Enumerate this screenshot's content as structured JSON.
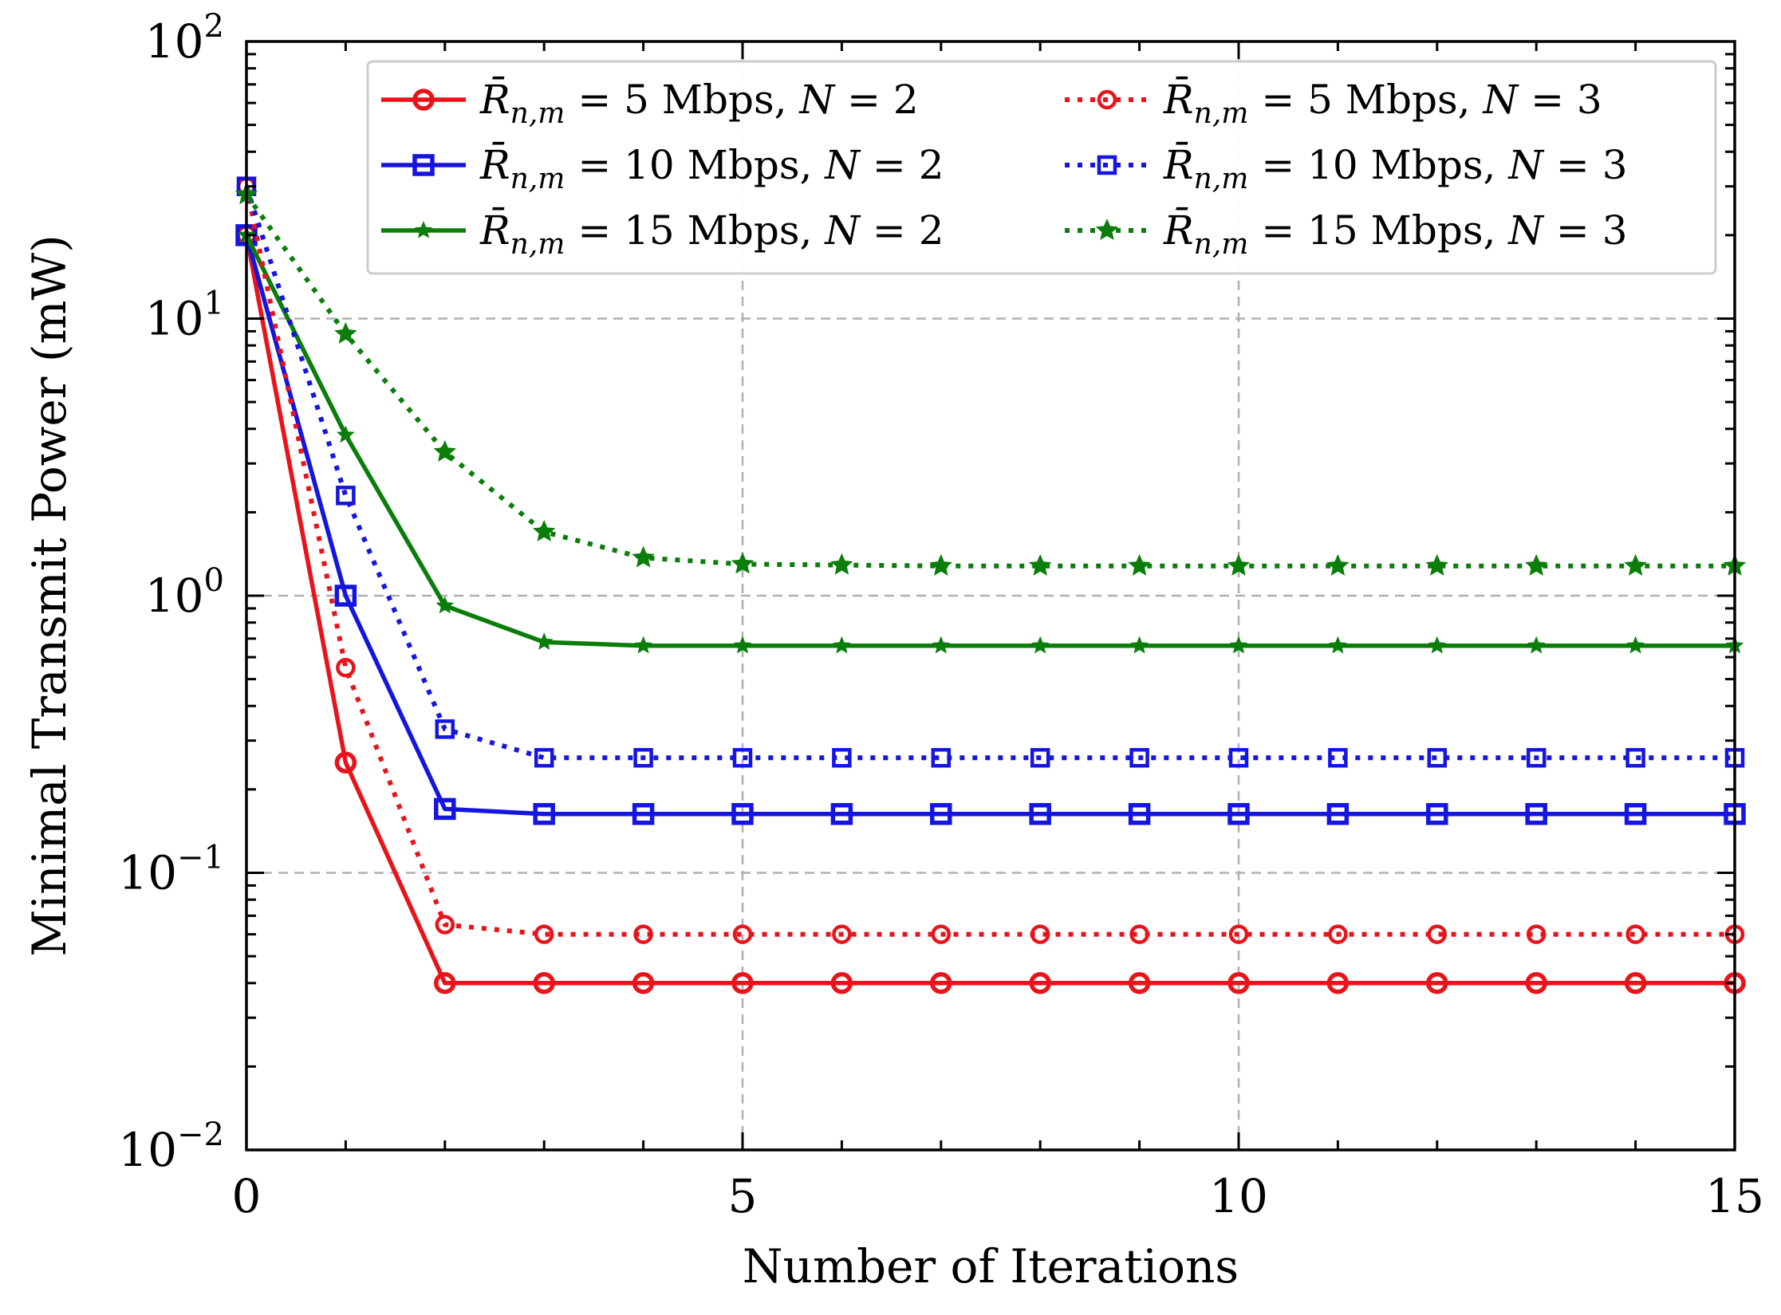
{
  "chart_data": {
    "type": "line",
    "title": "",
    "xlabel": "Number of Iterations",
    "ylabel": "Minimal Transmit Power (mW)",
    "xlim": [
      0,
      15
    ],
    "ylim": [
      0.01,
      100
    ],
    "yscale": "log",
    "grid": true,
    "legend_position": "top-right",
    "x_ticks": [
      {
        "value": 0,
        "label": "0"
      },
      {
        "value": 5,
        "label": "5"
      },
      {
        "value": 10,
        "label": "10"
      },
      {
        "value": 15,
        "label": "15"
      }
    ],
    "y_ticks": [
      {
        "value": 0.01,
        "base": "10",
        "exp": "−2"
      },
      {
        "value": 0.1,
        "base": "10",
        "exp": "−1"
      },
      {
        "value": 1,
        "base": "10",
        "exp": "0"
      },
      {
        "value": 10,
        "base": "10",
        "exp": "1"
      },
      {
        "value": 100,
        "base": "10",
        "exp": "2"
      }
    ],
    "x": [
      0,
      1,
      2,
      3,
      4,
      5,
      6,
      7,
      8,
      9,
      10,
      11,
      12,
      13,
      14,
      15
    ],
    "series": [
      {
        "name": "R̄n,m = 5 Mbps,  N = 2",
        "rate": "5",
        "N": "2",
        "color": "#e8141b",
        "style": "solid",
        "marker": "circle",
        "values": [
          20,
          0.25,
          0.04,
          0.04,
          0.04,
          0.04,
          0.04,
          0.04,
          0.04,
          0.04,
          0.04,
          0.04,
          0.04,
          0.04,
          0.04,
          0.04
        ]
      },
      {
        "name": "R̄n,m = 10 Mbps,  N = 2",
        "rate": "10",
        "N": "2",
        "color": "#1515e0",
        "style": "solid",
        "marker": "square",
        "values": [
          20,
          1.0,
          0.17,
          0.163,
          0.163,
          0.163,
          0.163,
          0.163,
          0.163,
          0.163,
          0.163,
          0.163,
          0.163,
          0.163,
          0.163,
          0.163
        ]
      },
      {
        "name": "R̄n,m = 15 Mbps,  N = 2",
        "rate": "15",
        "N": "2",
        "color": "#0a7d0a",
        "style": "solid",
        "marker": "star",
        "values": [
          20,
          3.8,
          0.92,
          0.68,
          0.66,
          0.66,
          0.66,
          0.66,
          0.66,
          0.66,
          0.66,
          0.66,
          0.66,
          0.66,
          0.66,
          0.66
        ]
      },
      {
        "name": "R̄n,m = 5 Mbps,  N = 3",
        "rate": "5",
        "N": "3",
        "color": "#e8141b",
        "style": "dotted",
        "marker": "circle",
        "values": [
          30,
          0.55,
          0.065,
          0.06,
          0.06,
          0.06,
          0.06,
          0.06,
          0.06,
          0.06,
          0.06,
          0.06,
          0.06,
          0.06,
          0.06,
          0.06
        ]
      },
      {
        "name": "R̄n,m = 10 Mbps,  N = 3",
        "rate": "10",
        "N": "3",
        "color": "#1515e0",
        "style": "dotted",
        "marker": "square",
        "values": [
          30,
          2.3,
          0.33,
          0.26,
          0.26,
          0.26,
          0.26,
          0.26,
          0.26,
          0.26,
          0.26,
          0.26,
          0.26,
          0.26,
          0.26,
          0.26
        ]
      },
      {
        "name": "R̄n,m = 15 Mbps,  N = 3",
        "rate": "15",
        "N": "3",
        "color": "#0a7d0a",
        "style": "dotted",
        "marker": "star",
        "values": [
          28,
          8.8,
          3.3,
          1.7,
          1.37,
          1.3,
          1.29,
          1.28,
          1.28,
          1.28,
          1.28,
          1.28,
          1.28,
          1.28,
          1.28,
          1.28
        ]
      }
    ]
  }
}
